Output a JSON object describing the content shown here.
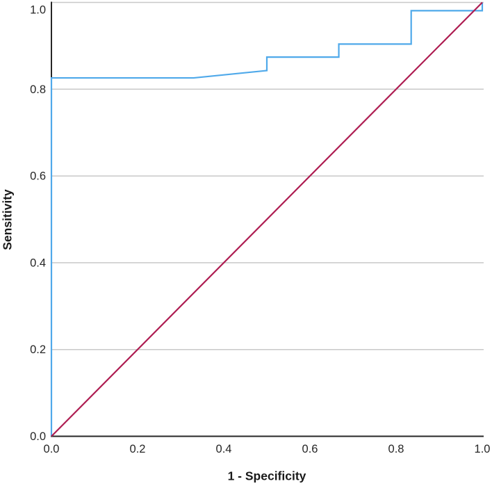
{
  "figure": {
    "background": "#ffffff"
  },
  "colors": {
    "roc_curve": "#4FA9EA",
    "reference_line": "#AE1C51",
    "gridline": "#C8C8C8",
    "axis_line": "#262626",
    "tick_text": "#262626"
  },
  "axes": {
    "x_title": "1 - Specificity",
    "y_title": "Sensitivity",
    "x_ticks": [
      "0.0",
      "0.2",
      "0.4",
      "0.6",
      "0.8",
      "1.0"
    ],
    "y_ticks": [
      "0.0",
      "0.2",
      "0.4",
      "0.6",
      "0.8",
      "1.0"
    ],
    "grid_values": [
      0.2,
      0.4,
      0.6,
      0.8,
      1.0
    ]
  },
  "chart_data": {
    "type": "line",
    "title": "",
    "xlabel": "1 - Specificity",
    "ylabel": "Sensitivity",
    "xlim": [
      0,
      1
    ],
    "ylim": [
      0,
      1
    ],
    "grid": "horizontal-only",
    "legend": "none",
    "series": [
      {
        "name": "ROC curve",
        "color": "#4FA9EA",
        "x": [
          0,
          0,
          0.33,
          0.5,
          0.5,
          0.667,
          0.667,
          0.835,
          0.835,
          1.0,
          1.0
        ],
        "y": [
          0,
          0.826,
          0.826,
          0.843,
          0.874,
          0.874,
          0.904,
          0.904,
          0.981,
          0.981,
          1.0
        ]
      },
      {
        "name": "Reference line (diagonal)",
        "color": "#AE1C51",
        "x": [
          0,
          1
        ],
        "y": [
          0,
          1
        ]
      }
    ]
  }
}
